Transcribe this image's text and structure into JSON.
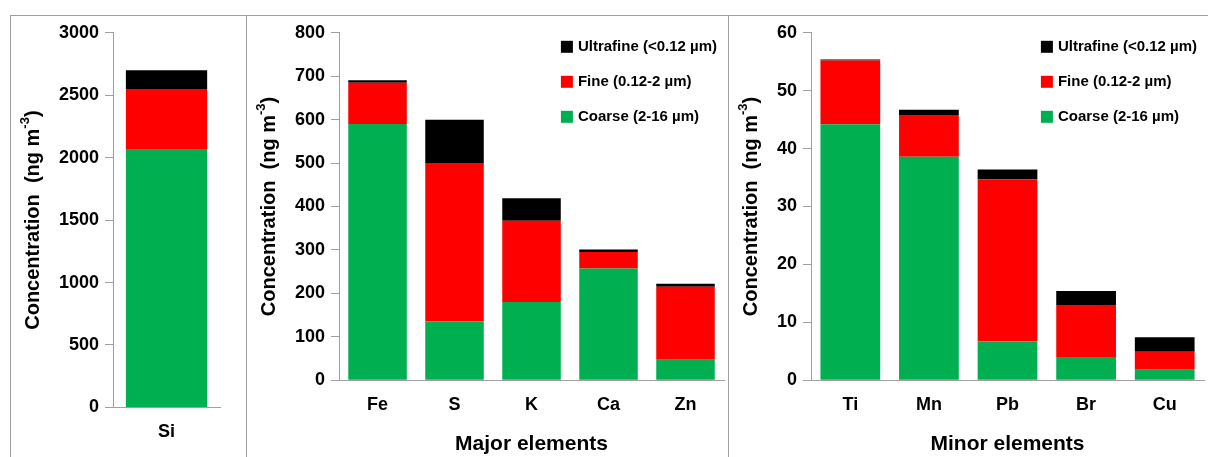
{
  "chart_data": [
    {
      "type": "bar",
      "stacked": true,
      "ylabel": "Concentration  (ng m$^{-3}$)",
      "categories": [
        "Si"
      ],
      "ylim": [
        0,
        3000
      ],
      "yticks": [
        0,
        500,
        1000,
        1500,
        2000,
        2500,
        3000
      ],
      "grid": false,
      "legend": false,
      "series": [
        {
          "color": "#00b050",
          "values": [
            2070
          ]
        },
        {
          "color": "#ff0000",
          "values": [
            480
          ]
        },
        {
          "color": "#000000",
          "values": [
            150
          ]
        }
      ]
    },
    {
      "type": "bar",
      "stacked": true,
      "ylabel": "Concentration  (ng m$^{-3}$)",
      "xlabel": "Major elements",
      "categories": [
        "Fe",
        "S",
        "K",
        "Ca",
        "Zn"
      ],
      "ylim": [
        0,
        800
      ],
      "yticks": [
        0,
        100,
        200,
        300,
        400,
        500,
        600,
        700,
        800
      ],
      "grid": false,
      "legend": "top right",
      "series": [
        {
          "name": "Coarse (2-16 µm)",
          "color": "#00b050",
          "values": [
            590,
            135,
            180,
            257,
            47
          ]
        },
        {
          "name": "Fine (0.12-2 µm)",
          "color": "#ff0000",
          "values": [
            95,
            365,
            187,
            38,
            168
          ]
        },
        {
          "name": "Ultrafine (<0.12 µm)",
          "color": "#000000",
          "values": [
            6,
            100,
            52,
            6,
            7
          ]
        }
      ]
    },
    {
      "type": "bar",
      "stacked": true,
      "ylabel": "Concentration  (ng m$^{-3}$)",
      "xlabel": "Minor elements",
      "categories": [
        "Ti",
        "Mn",
        "Pb",
        "Br",
        "Cu"
      ],
      "ylim": [
        0,
        60
      ],
      "yticks": [
        0,
        10,
        20,
        30,
        40,
        50,
        60
      ],
      "grid": false,
      "legend": "top right",
      "series": [
        {
          "name": "Coarse (2-16 µm)",
          "color": "#00b050",
          "values": [
            44.2,
            38.6,
            6.7,
            4.0,
            1.8
          ]
        },
        {
          "name": "Fine (0.12-2 µm)",
          "color": "#ff0000",
          "values": [
            11.0,
            7.2,
            28.0,
            9.0,
            3.1
          ]
        },
        {
          "name": "Ultrafine (<0.12 µm)",
          "color": "#000000",
          "values": [
            0.2,
            0.9,
            1.7,
            2.4,
            2.5
          ]
        }
      ]
    }
  ]
}
